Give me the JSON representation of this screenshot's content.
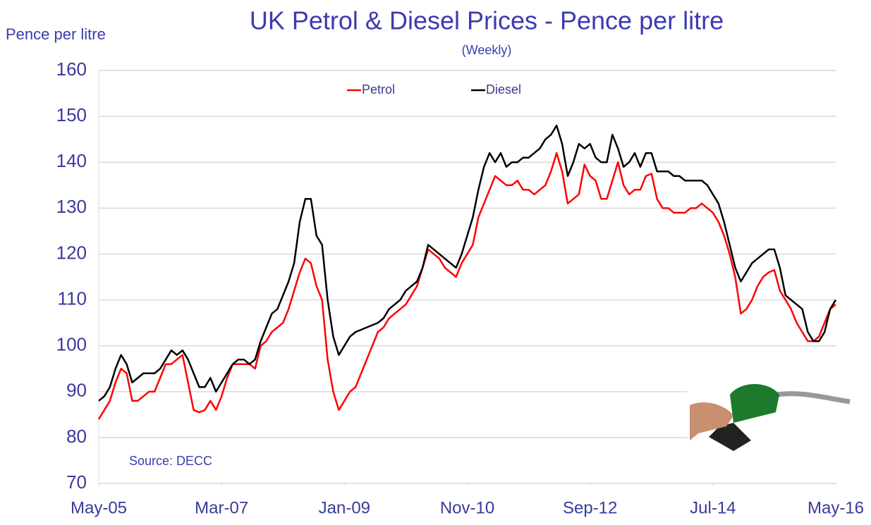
{
  "chart_data": {
    "type": "line",
    "title": "UK Petrol & Diesel Prices - Pence per litre",
    "subtitle": "(Weekly)",
    "y_label": "Pence per litre",
    "annotation": "Source: DECC",
    "grid": true,
    "legend": "top",
    "ylim": [
      70,
      160
    ],
    "yticks": [
      70,
      80,
      90,
      100,
      110,
      120,
      130,
      140,
      150,
      160
    ],
    "xlim": [
      "2005-05",
      "2016-05"
    ],
    "xticks": [
      {
        "value": "2005-05",
        "label": "May-05"
      },
      {
        "value": "2007-03",
        "label": "Mar-07"
      },
      {
        "value": "2009-01",
        "label": "Jan-09"
      },
      {
        "value": "2010-11",
        "label": "Nov-10"
      },
      {
        "value": "2012-09",
        "label": "Sep-12"
      },
      {
        "value": "2014-07",
        "label": "Jul-14"
      },
      {
        "value": "2016-05",
        "label": "May-16"
      }
    ],
    "x": [
      "2005-05",
      "2005-06",
      "2005-07",
      "2005-08",
      "2005-09",
      "2005-10",
      "2005-11",
      "2005-12",
      "2006-01",
      "2006-02",
      "2006-03",
      "2006-04",
      "2006-05",
      "2006-06",
      "2006-07",
      "2006-08",
      "2006-09",
      "2006-10",
      "2006-11",
      "2006-12",
      "2007-01",
      "2007-02",
      "2007-03",
      "2007-04",
      "2007-05",
      "2007-06",
      "2007-07",
      "2007-08",
      "2007-09",
      "2007-10",
      "2007-11",
      "2007-12",
      "2008-01",
      "2008-02",
      "2008-03",
      "2008-04",
      "2008-05",
      "2008-06",
      "2008-07",
      "2008-08",
      "2008-09",
      "2008-10",
      "2008-11",
      "2008-12",
      "2009-01",
      "2009-02",
      "2009-03",
      "2009-04",
      "2009-05",
      "2009-06",
      "2009-07",
      "2009-08",
      "2009-09",
      "2009-10",
      "2009-11",
      "2009-12",
      "2010-01",
      "2010-02",
      "2010-03",
      "2010-04",
      "2010-05",
      "2010-06",
      "2010-07",
      "2010-08",
      "2010-09",
      "2010-10",
      "2010-11",
      "2010-12",
      "2011-01",
      "2011-02",
      "2011-03",
      "2011-04",
      "2011-05",
      "2011-06",
      "2011-07",
      "2011-08",
      "2011-09",
      "2011-10",
      "2011-11",
      "2011-12",
      "2012-01",
      "2012-02",
      "2012-03",
      "2012-04",
      "2012-05",
      "2012-06",
      "2012-07",
      "2012-08",
      "2012-09",
      "2012-10",
      "2012-11",
      "2012-12",
      "2013-01",
      "2013-02",
      "2013-03",
      "2013-04",
      "2013-05",
      "2013-06",
      "2013-07",
      "2013-08",
      "2013-09",
      "2013-10",
      "2013-11",
      "2013-12",
      "2014-01",
      "2014-02",
      "2014-03",
      "2014-04",
      "2014-05",
      "2014-06",
      "2014-07",
      "2014-08",
      "2014-09",
      "2014-10",
      "2014-11",
      "2014-12",
      "2015-01",
      "2015-02",
      "2015-03",
      "2015-04",
      "2015-05",
      "2015-06",
      "2015-07",
      "2015-08",
      "2015-09",
      "2015-10",
      "2015-11",
      "2015-12",
      "2016-01",
      "2016-02",
      "2016-03",
      "2016-04",
      "2016-05"
    ],
    "series": [
      {
        "name": "Petrol",
        "color": "#ff0000",
        "values": [
          84,
          86,
          88,
          92,
          95,
          94,
          88,
          88,
          89,
          90,
          90,
          93,
          96,
          96,
          97,
          98,
          92,
          86,
          85.5,
          86,
          88,
          86,
          89,
          93,
          96,
          96,
          96,
          96,
          95,
          100,
          101,
          103,
          104,
          105,
          108,
          112,
          116,
          119,
          118,
          113,
          110,
          97,
          90,
          86,
          88,
          90,
          91,
          94,
          97,
          100,
          103,
          104,
          106,
          107,
          108,
          109,
          111,
          113,
          117,
          121,
          120,
          119,
          117,
          116,
          115,
          118,
          120,
          122,
          128,
          131,
          134,
          137,
          136,
          135,
          135,
          136,
          134,
          134,
          133,
          134,
          135,
          138,
          142,
          138,
          131,
          132,
          133,
          139.5,
          137,
          136,
          132,
          132,
          136,
          140,
          135,
          133,
          134,
          134,
          137,
          137.5,
          132,
          130,
          130,
          129,
          129,
          129,
          130,
          130,
          131,
          130,
          129,
          127,
          124,
          120,
          115,
          107,
          108,
          110,
          113,
          115,
          116,
          116.5,
          112,
          110,
          108,
          105,
          103,
          101,
          101,
          102,
          105,
          108,
          109
        ]
      },
      {
        "name": "Diesel",
        "color": "#000000",
        "values": [
          88,
          89,
          91,
          95,
          98,
          96,
          92,
          93,
          94,
          94,
          94,
          95,
          97,
          99,
          98,
          99,
          97,
          94,
          91,
          91,
          93,
          90,
          92,
          94,
          96,
          97,
          97,
          96,
          97,
          101,
          104,
          107,
          108,
          111,
          114,
          118,
          127,
          132,
          132,
          124,
          122,
          110,
          102,
          98,
          100,
          102,
          103,
          103.5,
          104,
          104.5,
          105,
          106,
          108,
          109,
          110,
          112,
          113,
          114,
          117,
          122,
          121,
          120,
          119,
          118,
          117,
          120,
          124,
          128,
          134,
          139,
          142,
          140,
          142,
          139,
          140,
          140,
          141,
          141,
          142,
          143,
          145,
          146,
          148,
          144,
          137,
          140,
          144,
          143,
          144,
          141,
          140,
          140,
          146,
          143,
          139,
          140,
          142,
          139,
          142,
          142,
          138,
          138,
          138,
          137,
          137,
          136,
          136,
          136,
          136,
          135,
          133,
          131,
          127,
          122,
          117,
          114,
          116,
          118,
          119,
          120,
          121,
          121,
          117,
          111,
          110,
          109,
          108,
          103,
          101,
          101,
          103,
          108,
          110
        ]
      }
    ]
  }
}
